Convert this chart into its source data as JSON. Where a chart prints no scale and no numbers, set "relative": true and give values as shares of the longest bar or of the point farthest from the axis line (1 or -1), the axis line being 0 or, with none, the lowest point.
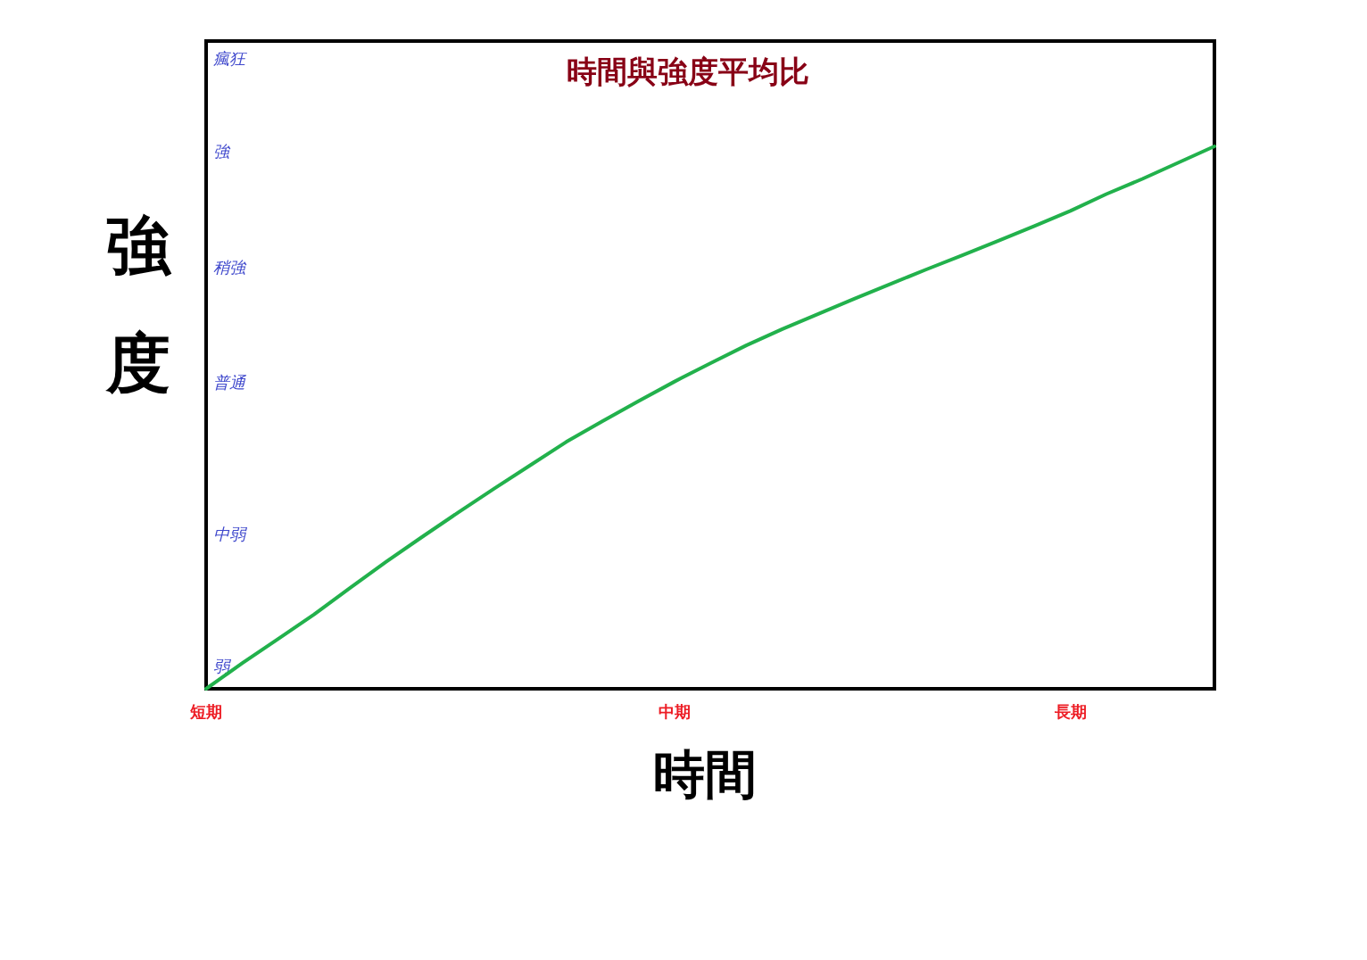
{
  "chart_data": {
    "type": "line",
    "title": "時間與強度平均比",
    "xlabel": "時間",
    "ylabel": "強度",
    "relative": true,
    "categories": [
      "短期",
      null,
      null,
      null,
      null,
      null,
      null,
      null,
      null,
      null,
      null,
      null,
      null,
      "中期",
      null,
      null,
      null,
      null,
      null,
      null,
      null,
      null,
      null,
      null,
      "長期",
      null,
      null,
      null,
      null
    ],
    "annotations": [
      "瘋狂",
      "強",
      "稍強",
      "普通",
      "中弱",
      "弱"
    ],
    "series": [
      {
        "color": "#22b14c",
        "values": [
          0,
          0.047,
          0.092,
          0.137,
          0.186,
          0.234,
          0.28,
          0.325,
          0.369,
          0.412,
          0.455,
          0.493,
          0.53,
          0.566,
          0.6,
          0.633,
          0.663,
          0.691,
          0.719,
          0.746,
          0.773,
          0.799,
          0.826,
          0.853,
          0.881,
          0.912,
          0.94,
          0.97,
          1
        ]
      }
    ]
  }
}
